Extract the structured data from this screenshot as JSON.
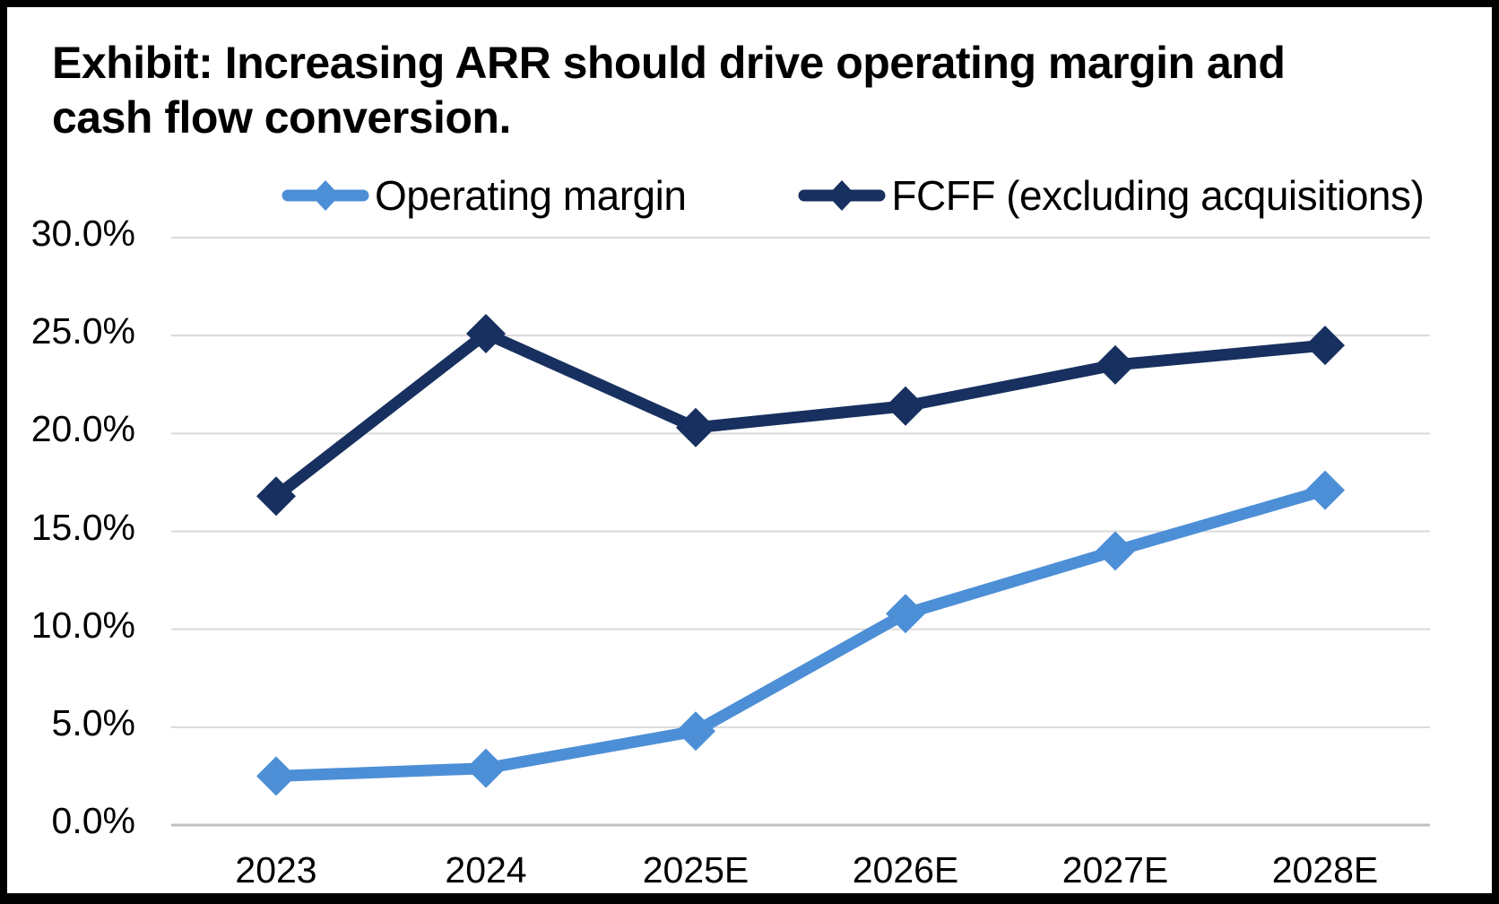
{
  "title": "Exhibit: Increasing ARR should drive operating margin and cash flow conversion.",
  "legend": {
    "items": [
      {
        "label": "Operating margin",
        "color": "#4D8FD6"
      },
      {
        "label": "FCFF (excluding acquisitions)",
        "color": "#17305F"
      }
    ]
  },
  "chart_data": {
    "type": "line",
    "title": "Exhibit: Increasing ARR should drive operating margin and cash flow conversion.",
    "categories": [
      "2023",
      "2024",
      "2025E",
      "2026E",
      "2027E",
      "2028E"
    ],
    "series": [
      {
        "name": "Operating margin",
        "color": "#4D8FD6",
        "values": [
          2.5,
          2.9,
          4.8,
          10.8,
          14.0,
          17.1
        ],
        "unit": "%"
      },
      {
        "name": "FCFF (excluding acquisitions)",
        "color": "#17305F",
        "values": [
          16.8,
          25.1,
          20.3,
          21.4,
          23.5,
          24.5
        ],
        "unit": "%"
      }
    ],
    "xlabel": "",
    "ylabel": "",
    "ylim": [
      0,
      30
    ],
    "ytick_step": 5,
    "yticks": [
      {
        "value": 0,
        "label": "0.0%"
      },
      {
        "value": 5,
        "label": "5.0%"
      },
      {
        "value": 10,
        "label": "10.0%"
      },
      {
        "value": 15,
        "label": "15.0%"
      },
      {
        "value": 20,
        "label": "20.0%"
      },
      {
        "value": 25,
        "label": "25.0%"
      },
      {
        "value": 30,
        "label": "30.0%"
      }
    ],
    "grid": "horizontal",
    "gridline_color": "#D9D9D9",
    "axis_line_color": "#BFBFBF",
    "legend_position": "top",
    "marker": "diamond"
  }
}
